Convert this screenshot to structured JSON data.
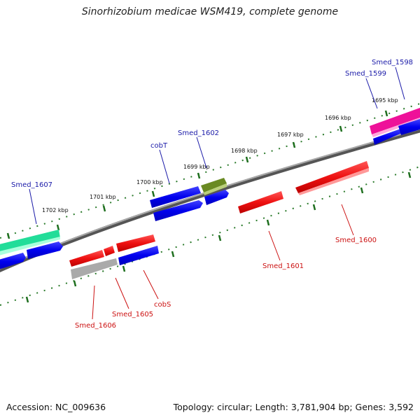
{
  "title": "Sinorhizobium medicae WSM419, complete genome",
  "footer": {
    "accession": "Accession: NC_009636",
    "summary": "Topology: circular; Length: 3,781,904 bp; Genes: 3,592"
  },
  "ticks": [
    "1695 kbp",
    "1696 kbp",
    "1697 kbp",
    "1698 kbp",
    "1699 kbp",
    "1700 kbp",
    "1701 kbp",
    "1702 kbp"
  ],
  "genes": {
    "forward": [
      "Smed_1598",
      "Smed_1599",
      "Smed_1602",
      "cobT",
      "Smed_1607"
    ],
    "reverse": [
      "Smed_1600",
      "Smed_1601",
      "cobS",
      "Smed_1605",
      "Smed_1606"
    ]
  },
  "colors": {
    "forward_label": "#1a1aa8",
    "reverse_label": "#cc1111",
    "blue_gene": "#0000ee",
    "red_gene": "#ee1111",
    "teal_gene": "#22dd99",
    "pink_gene": "#ee1199",
    "olive_gene": "#668822",
    "grey_gene": "#aaaaaa",
    "backbone": "#777777",
    "tick": "#227722"
  }
}
